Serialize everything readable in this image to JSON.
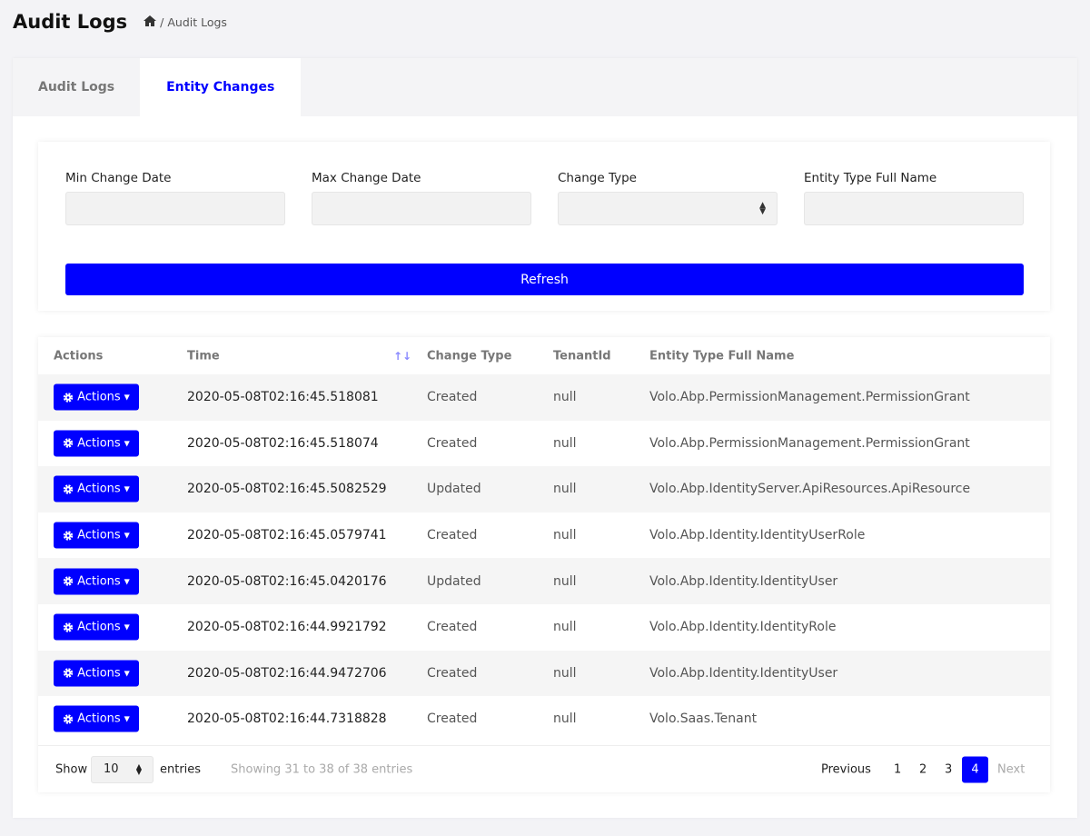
{
  "colors": {
    "accent": "#0000ff"
  },
  "header": {
    "title": "Audit Logs",
    "breadcrumb_icon": "home-icon",
    "breadcrumb_sep": "/",
    "breadcrumb_current": "Audit Logs"
  },
  "tabs": [
    {
      "label": "Audit Logs",
      "active": false
    },
    {
      "label": "Entity Changes",
      "active": true
    }
  ],
  "filters": {
    "min_date_label": "Min Change Date",
    "max_date_label": "Max Change Date",
    "change_type_label": "Change Type",
    "entity_type_label": "Entity Type Full Name",
    "refresh_label": "Refresh"
  },
  "table": {
    "columns": [
      "Actions",
      "Time",
      "Change Type",
      "TenantId",
      "Entity Type Full Name"
    ],
    "action_label": "Actions",
    "rows": [
      {
        "time": "2020-05-08T02:16:45.518081",
        "type": "Created",
        "tenant": "null",
        "entity": "Volo.Abp.PermissionManagement.PermissionGrant"
      },
      {
        "time": "2020-05-08T02:16:45.518074",
        "type": "Created",
        "tenant": "null",
        "entity": "Volo.Abp.PermissionManagement.PermissionGrant"
      },
      {
        "time": "2020-05-08T02:16:45.5082529",
        "type": "Updated",
        "tenant": "null",
        "entity": "Volo.Abp.IdentityServer.ApiResources.ApiResource"
      },
      {
        "time": "2020-05-08T02:16:45.0579741",
        "type": "Created",
        "tenant": "null",
        "entity": "Volo.Abp.Identity.IdentityUserRole"
      },
      {
        "time": "2020-05-08T02:16:45.0420176",
        "type": "Updated",
        "tenant": "null",
        "entity": "Volo.Abp.Identity.IdentityUser"
      },
      {
        "time": "2020-05-08T02:16:44.9921792",
        "type": "Created",
        "tenant": "null",
        "entity": "Volo.Abp.Identity.IdentityRole"
      },
      {
        "time": "2020-05-08T02:16:44.9472706",
        "type": "Created",
        "tenant": "null",
        "entity": "Volo.Abp.Identity.IdentityUser"
      },
      {
        "time": "2020-05-08T02:16:44.7318828",
        "type": "Created",
        "tenant": "null",
        "entity": "Volo.Saas.Tenant"
      }
    ]
  },
  "footer": {
    "show_label": "Show",
    "page_size": "10",
    "entries_label": "entries",
    "info": "Showing 31 to 38 of 38 entries",
    "previous": "Previous",
    "pages": [
      "1",
      "2",
      "3",
      "4"
    ],
    "current_page": "4",
    "next": "Next"
  }
}
